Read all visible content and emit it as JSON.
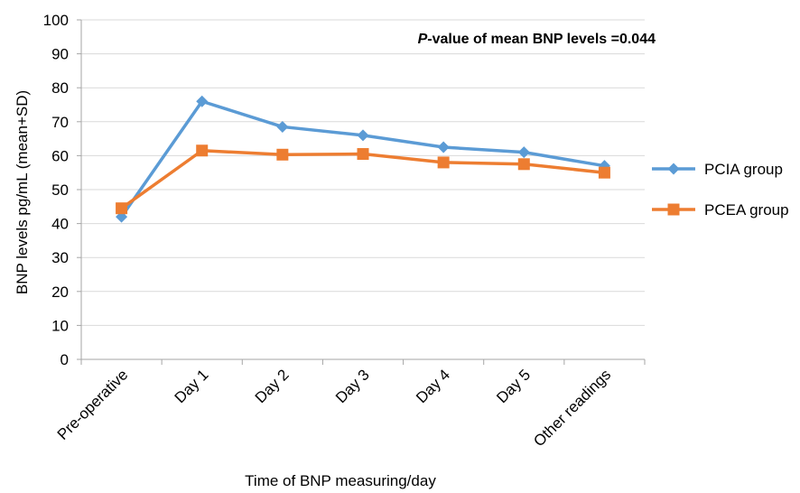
{
  "chart_data": {
    "type": "line",
    "title": "",
    "annotation": {
      "prefix": "P",
      "rest": "-value of mean BNP levels =0.044"
    },
    "xlabel": "Time of BNP measuring/day",
    "ylabel": "BNP levels pg/mL (mean+SD)",
    "categories": [
      "Pre-operative",
      "Day 1",
      "Day 2",
      "Day 3",
      "Day 4",
      "Day 5",
      "Other readings"
    ],
    "ylim": [
      0,
      100
    ],
    "yticks": [
      0,
      10,
      20,
      30,
      40,
      50,
      60,
      70,
      80,
      90,
      100
    ],
    "grid": true,
    "legend_position": "right",
    "series": [
      {
        "name": "PCIA group",
        "color": "#5B9BD5",
        "marker": "diamond",
        "values": [
          42,
          76,
          68.5,
          66,
          62.5,
          61,
          57
        ]
      },
      {
        "name": "PCEA group",
        "color": "#ED7D31",
        "marker": "square",
        "values": [
          44.5,
          61.5,
          60.3,
          60.5,
          58,
          57.5,
          55
        ]
      }
    ]
  }
}
